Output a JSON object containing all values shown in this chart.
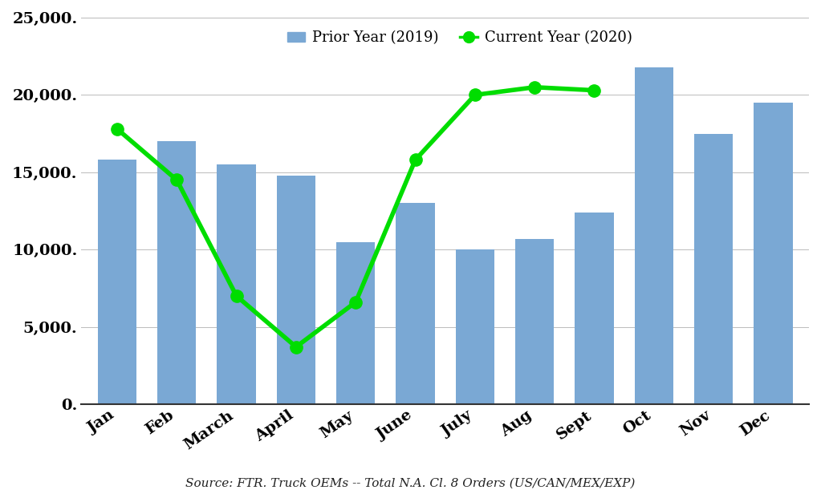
{
  "months": [
    "Jan",
    "Feb",
    "March",
    "April",
    "May",
    "June",
    "July",
    "Aug",
    "Sept",
    "Oct",
    "Nov",
    "Dec"
  ],
  "prior_year": [
    15800,
    17000,
    15500,
    14800,
    10500,
    13000,
    10000,
    10700,
    12400,
    21800,
    17500,
    19500
  ],
  "current_year": [
    17800,
    14500,
    7000,
    3700,
    6600,
    15800,
    20000,
    20500,
    20300,
    null,
    null,
    null
  ],
  "bar_color": "#7AA8D4",
  "line_color": "#00DD00",
  "background_color": "#FFFFFF",
  "ylim": [
    0,
    25000
  ],
  "yticks": [
    0,
    5000,
    10000,
    15000,
    20000,
    25000
  ],
  "ytick_labels": [
    "0.",
    "5,000.",
    "10,000.",
    "15,000.",
    "20,000.",
    "25,000."
  ],
  "legend_bar_label": "Prior Year (2019)",
  "legend_line_label": "Current Year (2020)",
  "source_text": "Source: FTR. Truck OEMs -- Total N.A. Cl. 8 Orders (US/CAN/MEX/EXP)",
  "tick_fontsize": 14,
  "legend_fontsize": 13,
  "source_fontsize": 11
}
